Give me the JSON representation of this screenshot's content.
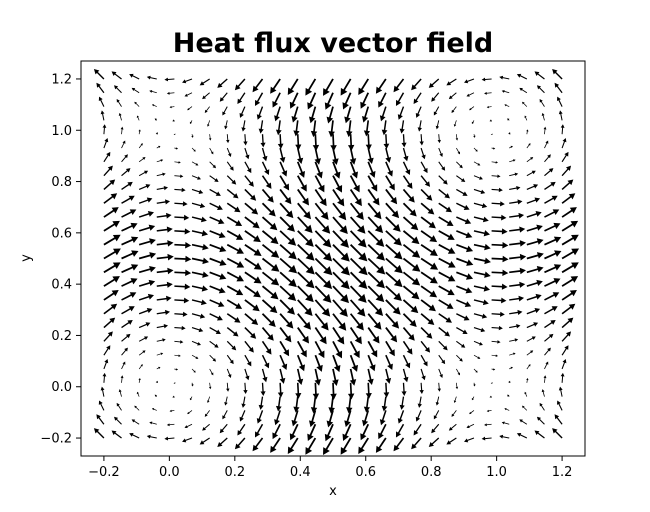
{
  "chart_data": {
    "type": "quiver",
    "title": "Heat flux vector field",
    "xlabel": "x",
    "ylabel": "y",
    "xlim": [
      -0.27,
      1.27
    ],
    "ylim": [
      -0.27,
      1.27
    ],
    "xticks": [
      -0.2,
      0.0,
      0.2,
      0.4,
      0.6,
      0.8,
      1.0,
      1.2
    ],
    "xtick_labels": [
      "−0.2",
      "0.0",
      "0.2",
      "0.4",
      "0.6",
      "0.8",
      "1.0",
      "1.2"
    ],
    "yticks": [
      -0.2,
      0.0,
      0.2,
      0.4,
      0.6,
      0.8,
      1.0,
      1.2
    ],
    "ytick_labels": [
      "−0.2",
      "0.0",
      "0.2",
      "0.4",
      "0.6",
      "0.8",
      "1.0",
      "1.2"
    ],
    "grid": false,
    "arrow_color": "#000000",
    "field": {
      "x_range": [
        -0.2,
        1.2
      ],
      "y_range": [
        -0.2,
        1.2
      ],
      "nx": 27,
      "ny": 27,
      "u": "sin(pi*y)",
      "v": "-sin(pi*x)"
    }
  }
}
